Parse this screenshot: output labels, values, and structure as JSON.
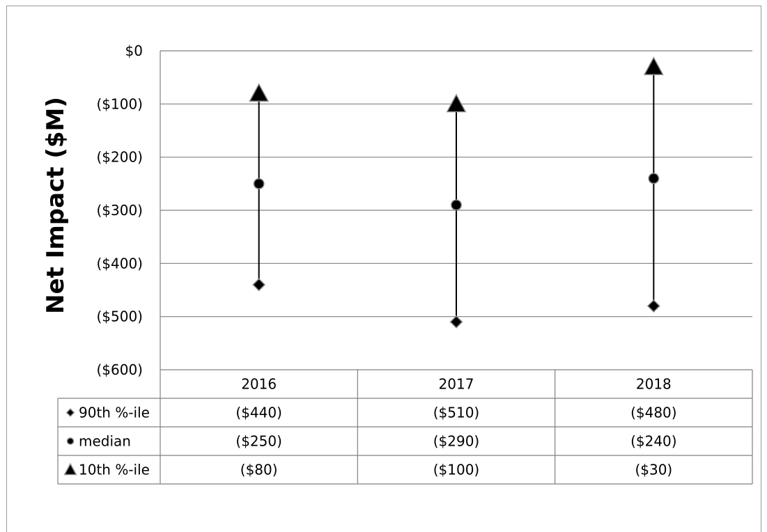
{
  "chart_data": {
    "type": "scatter",
    "title": "",
    "xlabel": "",
    "ylabel": "Net Impact ($M)",
    "ylim": [
      -600,
      0
    ],
    "yticks": [
      0,
      -100,
      -200,
      -300,
      -400,
      -500,
      -600
    ],
    "ytick_labels": [
      "$0",
      "($100)",
      "($200)",
      "($300)",
      "($400)",
      "($500)",
      "($600)"
    ],
    "grid": true,
    "categories": [
      "2016",
      "2017",
      "2018"
    ],
    "series": [
      {
        "name": "90th %-ile",
        "marker": "diamond",
        "values": [
          -440,
          -510,
          -480
        ],
        "labels": [
          "($440)",
          "($510)",
          "($480)"
        ]
      },
      {
        "name": "median",
        "marker": "circle",
        "values": [
          -250,
          -290,
          -240
        ],
        "labels": [
          "($250)",
          "($290)",
          "($240)"
        ]
      },
      {
        "name": "10th %-ile",
        "marker": "triangle",
        "values": [
          -80,
          -100,
          -30
        ],
        "labels": [
          "($80)",
          "($100)",
          "($30)"
        ]
      }
    ],
    "legend": "data-table-left",
    "colors": {
      "marker": "#000000",
      "grid": "#808080",
      "table_border": "#808080"
    }
  }
}
